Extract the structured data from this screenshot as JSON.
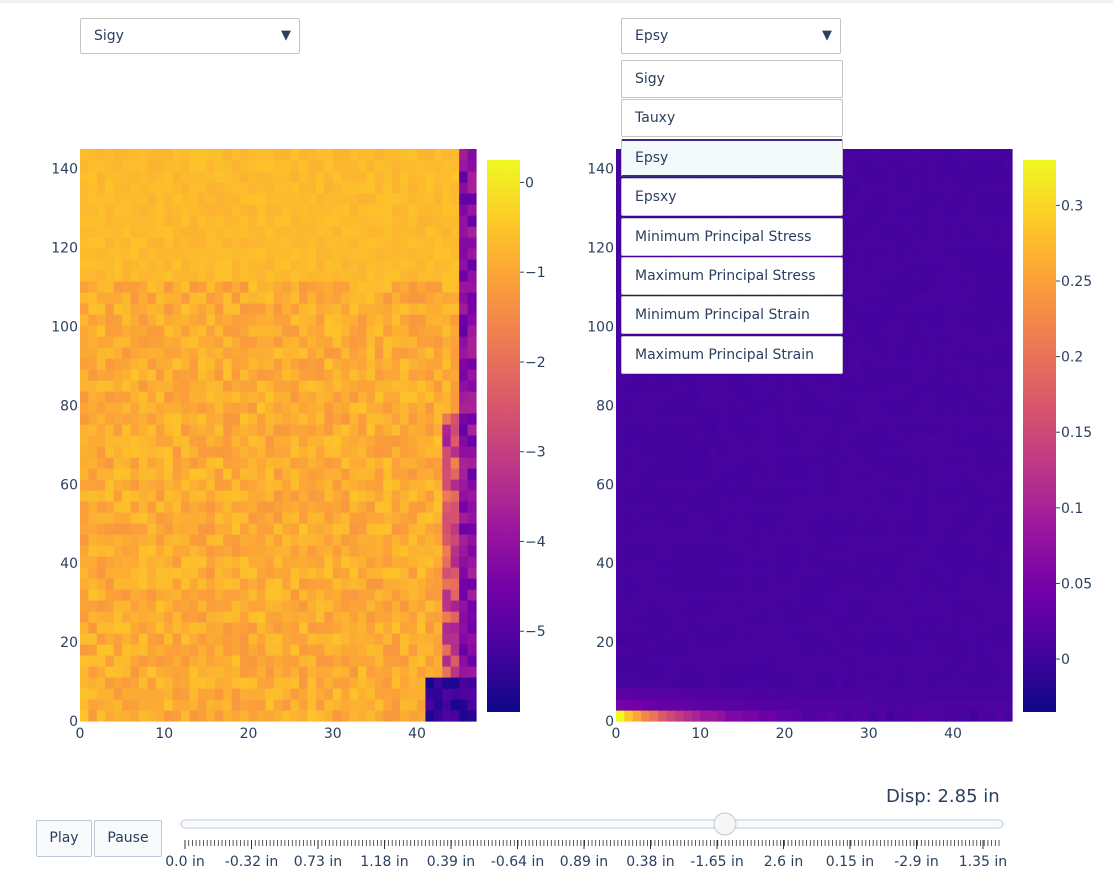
{
  "controls": {
    "left_dropdown": {
      "selected": "Sigy",
      "arrow_icon": "triangle-down-icon"
    },
    "right_dropdown": {
      "selected": "Epsy",
      "arrow_icon": "triangle-down-icon",
      "expanded": true,
      "options": [
        "Sigy",
        "Tauxy",
        "Epsy",
        "Epsxy",
        "Minimum Principal Stress",
        "Maximum Principal Stress",
        "Minimum Principal Strain",
        "Maximum Principal Strain"
      ]
    },
    "play_label": "Play",
    "pause_label": "Pause"
  },
  "slider": {
    "current_label": "Disp: 2.85 in",
    "active_step_fraction": 0.6633,
    "tick_labels": [
      "0.0 in",
      "-0.32 in",
      "0.73 in",
      "1.18 in",
      "0.39 in",
      "-0.64 in",
      "0.89 in",
      "0.38 in",
      "-1.65 in",
      "2.6 in",
      "0.15 in",
      "-2.9 in",
      "1.35 in"
    ]
  },
  "colors": {
    "plasma": [
      "#0d0887",
      "#46039f",
      "#7201a8",
      "#9c179e",
      "#bd3786",
      "#d8576b",
      "#ed7953",
      "#fb9f3a",
      "#fdca26",
      "#f0f921"
    ],
    "text": "#2a3f5f",
    "heatmap_bg": "#2c0a99"
  },
  "chart_data": [
    {
      "type": "heatmap",
      "variable": "Sigy",
      "x_range": [
        0,
        47
      ],
      "y_range": [
        0,
        145
      ],
      "xticks": [
        0,
        10,
        20,
        30,
        40
      ],
      "yticks": [
        0,
        20,
        40,
        60,
        80,
        100,
        120,
        140
      ],
      "colorscale": "Plasma",
      "zrange": [
        -5.9,
        0.25
      ],
      "colorbar_ticks": [
        0,
        -1,
        -2,
        -3,
        -4,
        -5
      ],
      "colorbar_labels": [
        "0",
        "−1",
        "−2",
        "−3",
        "−4",
        "−5"
      ]
    },
    {
      "type": "heatmap",
      "variable": "Epsy",
      "x_range": [
        0,
        47
      ],
      "y_range": [
        0,
        145
      ],
      "xticks": [
        0,
        10,
        20,
        30,
        40
      ],
      "yticks": [
        0,
        20,
        40,
        60,
        80,
        100,
        120,
        140
      ],
      "colorscale": "Plasma",
      "zrange": [
        -0.035,
        0.33
      ],
      "colorbar_ticks": [
        0.3,
        0.25,
        0.2,
        0.15,
        0.1,
        0.05,
        0
      ],
      "colorbar_labels": [
        "0.3",
        "0.25",
        "0.2",
        "0.15",
        "0.1",
        "0.05",
        "0"
      ]
    }
  ]
}
